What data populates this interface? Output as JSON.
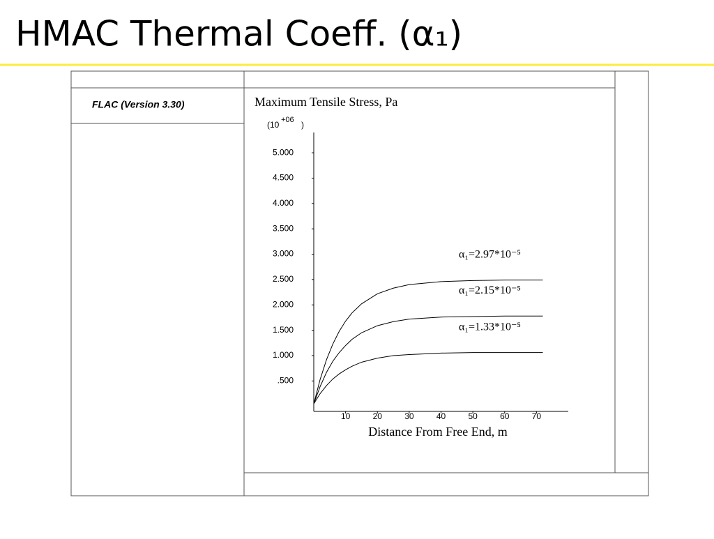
{
  "title": "HMAC Thermal Coeff. (α₁)",
  "panel_label": "FLAC (Version 3.30)",
  "chart_data": {
    "type": "line",
    "title": "Maximum Tensile Stress, Pa",
    "y_multiplier": {
      "base": "(10",
      "exponent": "+06",
      "close": ")"
    },
    "x_label": "Distance From Free End, m",
    "x": [
      0,
      2,
      4,
      6,
      8,
      10,
      12,
      15,
      20,
      25,
      30,
      40,
      50,
      60,
      72
    ],
    "series": [
      {
        "name": "α₁=2.97*10⁻⁵",
        "color": "#000000",
        "values": [
          0.05,
          0.53,
          0.92,
          1.23,
          1.48,
          1.68,
          1.84,
          2.02,
          2.22,
          2.33,
          2.4,
          2.46,
          2.48,
          2.49,
          2.49
        ]
      },
      {
        "name": "α₁=2.15*10⁻⁵",
        "color": "#000000",
        "values": [
          0.05,
          0.39,
          0.67,
          0.89,
          1.06,
          1.2,
          1.32,
          1.45,
          1.59,
          1.67,
          1.72,
          1.76,
          1.77,
          1.78,
          1.78
        ]
      },
      {
        "name": "α₁=1.33*10⁻⁵",
        "color": "#000000",
        "values": [
          0.05,
          0.25,
          0.41,
          0.54,
          0.64,
          0.72,
          0.79,
          0.87,
          0.95,
          1.0,
          1.02,
          1.05,
          1.06,
          1.06,
          1.06
        ]
      }
    ],
    "xlim": [
      0,
      80
    ],
    "xticks": [
      10,
      20,
      30,
      40,
      50,
      60,
      70
    ],
    "ylim": [
      -0.1,
      5.4
    ],
    "yticks": [
      {
        "value": 0.5,
        "label": ".500"
      },
      {
        "value": 1,
        "label": "1.000"
      },
      {
        "value": 1.5,
        "label": "1.500"
      },
      {
        "value": 2,
        "label": "2.000"
      },
      {
        "value": 2.5,
        "label": "2.500"
      },
      {
        "value": 3,
        "label": "3.000"
      },
      {
        "value": 3.5,
        "label": "3.500"
      },
      {
        "value": 4,
        "label": "4.000"
      },
      {
        "value": 4.5,
        "label": "4.500"
      },
      {
        "value": 5,
        "label": "5.000"
      }
    ]
  }
}
